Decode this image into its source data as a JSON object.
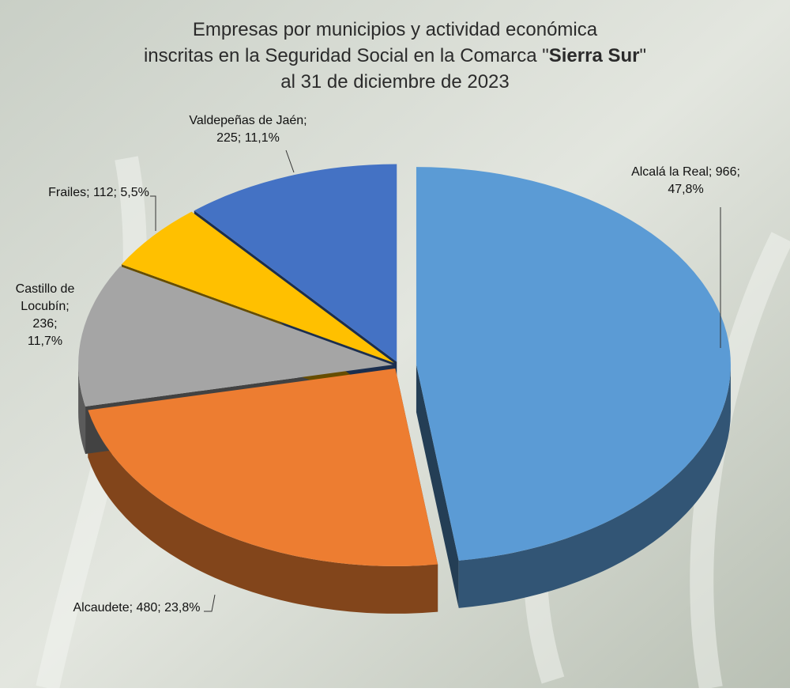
{
  "chart_data": {
    "type": "pie",
    "title": [
      "Empresas por municipios y actividad económica",
      [
        "inscritas en la Seguridad Social en la Comarca \"",
        "Sierra Sur",
        "\""
      ],
      "al 31 de diciembre de 2023"
    ],
    "values": [
      966,
      480,
      236,
      112,
      225
    ],
    "value_labels": [
      [
        "Alcalá la Real; 966;",
        "47,8%"
      ],
      [
        "Alcaudete; 480; 23,8%"
      ],
      [
        "Castillo de",
        "Locubín;",
        "236;",
        "11,7%"
      ],
      [
        "Frailes; 112; 5,5%"
      ],
      [
        "Valdepeñas de Jaén;",
        "225; 11,1%"
      ]
    ],
    "colors": [
      "#5b9bd5",
      "#ed7d31",
      "#a5a5a5",
      "#ffc000",
      "#4472c4"
    ]
  }
}
